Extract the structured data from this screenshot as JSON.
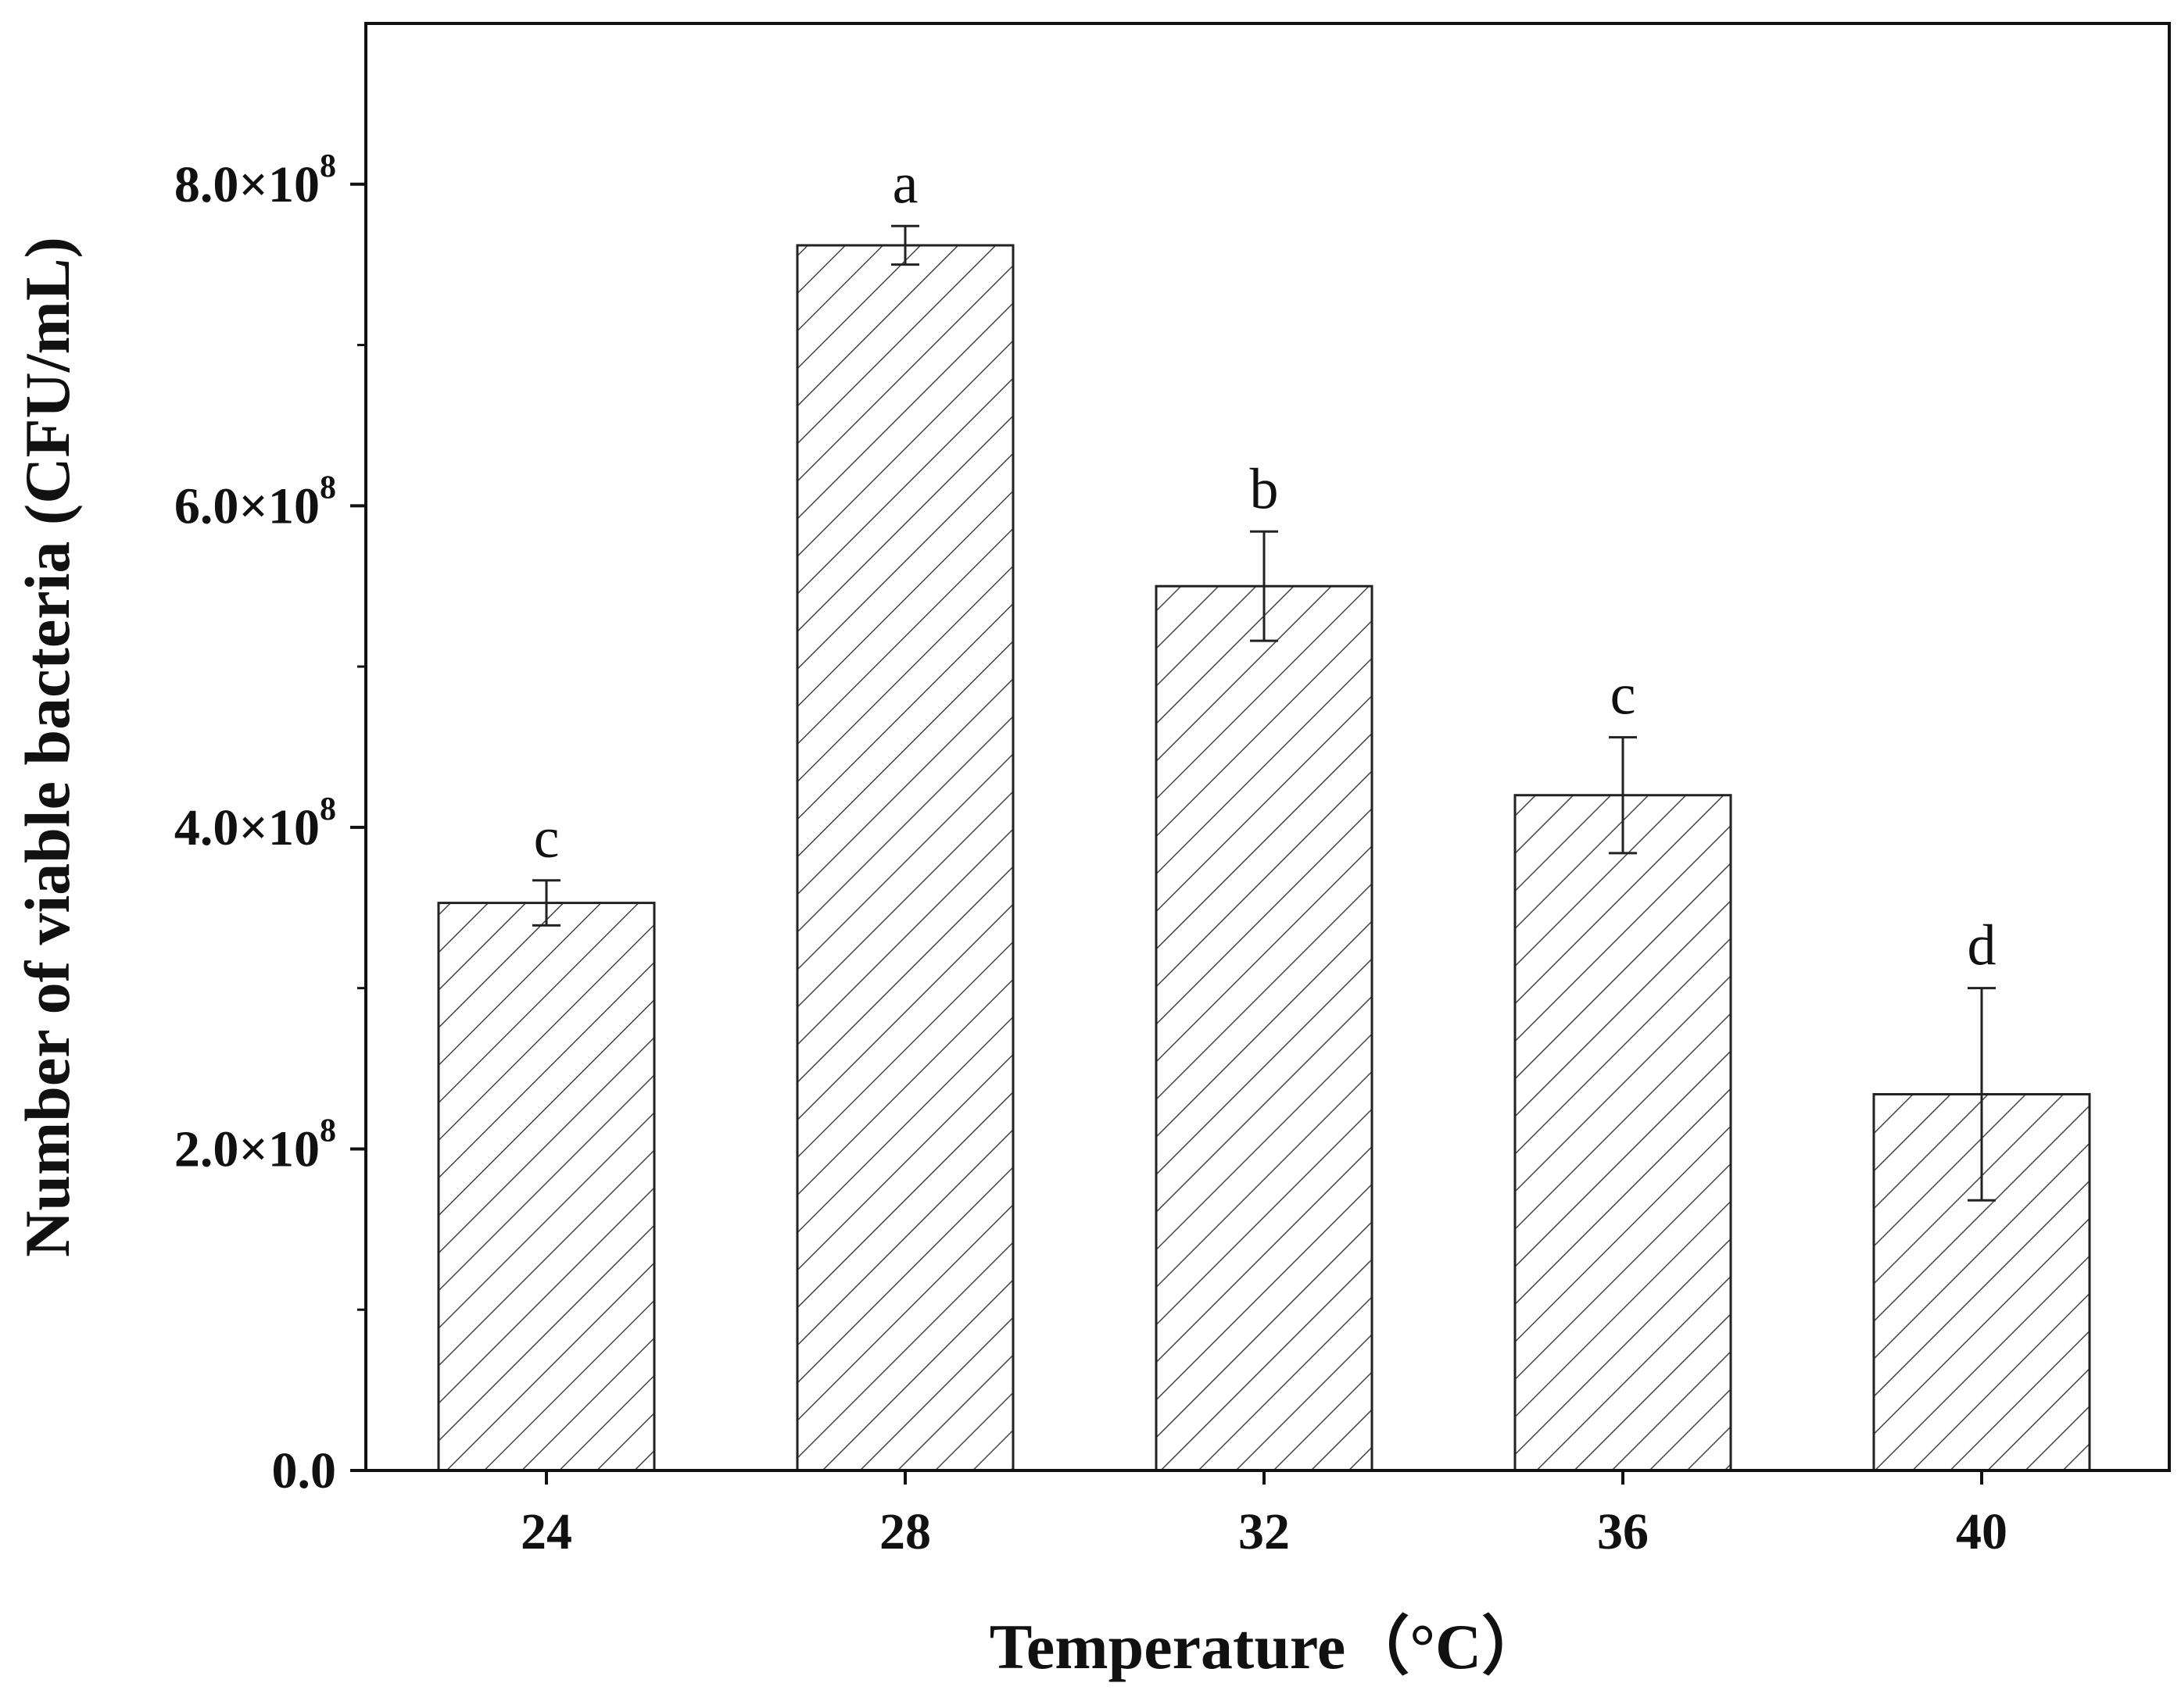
{
  "chart_data": {
    "type": "bar",
    "title": "",
    "xlabel": "Temperature（°C）",
    "ylabel": "Number of viable bacteria (CFU/mL)",
    "categories": [
      "24",
      "28",
      "32",
      "36",
      "40"
    ],
    "values": [
      353000000,
      762000000,
      550000000,
      420000000,
      234000000
    ],
    "errors": [
      14000000,
      12000000,
      34000000,
      36000000,
      66000000
    ],
    "significance": [
      "c",
      "a",
      "b",
      "c",
      "d"
    ],
    "ylim": [
      0,
      900000000
    ],
    "yticks": [
      {
        "value": 0,
        "mantissa": "0.0",
        "exponent": ""
      },
      {
        "value": 200000000,
        "mantissa": "2.0×10",
        "exponent": "8"
      },
      {
        "value": 400000000,
        "mantissa": "4.0×10",
        "exponent": "8"
      },
      {
        "value": 600000000,
        "mantissa": "6.0×10",
        "exponent": "8"
      },
      {
        "value": 800000000,
        "mantissa": "8.0×10",
        "exponent": "8"
      }
    ],
    "bar_fill": "hatched",
    "grid": false,
    "colors": {
      "bar_stroke": "#222222",
      "hatch": "#444444",
      "axis": "#111111",
      "background": "#ffffff"
    }
  }
}
